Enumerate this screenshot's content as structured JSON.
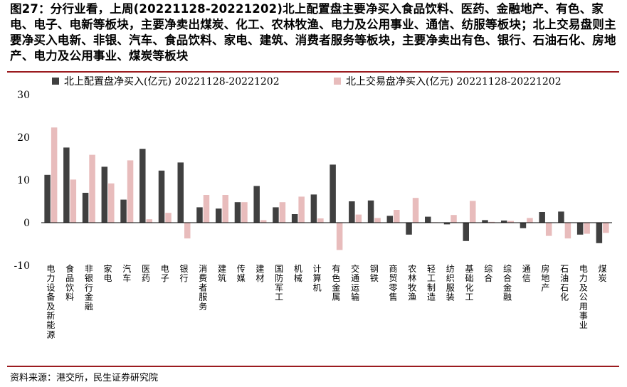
{
  "header": {
    "title": "图27：分行业看，上周(20221128-20221202)北上配置盘主要净买入食品饮料、医药、金融地产、有色、家电、电子、电新等板块，主要净卖出煤炭、化工、农林牧渔、电力及公用事业、通信、纺服等板块；北上交易盘则主要净买入电新、非银、汽车、食品饮料、家电、建筑、消费者服务等板块，主要净卖出有色、银行、石油石化、房地产、电力及公用事业、煤炭等板块"
  },
  "footer": {
    "source": "资料来源：港交所，民生证券研究院"
  },
  "colors": {
    "series1": "#404040",
    "series2": "#e8bcbc",
    "rule": "#9b1b1f"
  },
  "chart_data": {
    "type": "bar",
    "ylim": [
      -10,
      30
    ],
    "yticks": [
      "-10",
      "0",
      "10",
      "20",
      "30"
    ],
    "legend_position": "top",
    "grid": false,
    "categories": [
      "电力设备及新能源",
      "食品饮料",
      "非银行金融",
      "家电",
      "汽车",
      "医药",
      "电子",
      "银行",
      "消费者服务",
      "建筑",
      "传媒",
      "建材",
      "国防军工",
      "机械",
      "计算机",
      "有色金属",
      "交通运输",
      "钢铁",
      "商贸零售",
      "农林牧渔",
      "轻工制造",
      "纺织服装",
      "基础化工",
      "综合",
      "综合金融",
      "通信",
      "房地产",
      "石油石化",
      "电力及公用事业",
      "煤炭"
    ],
    "series": [
      {
        "name": "北上配置盘净买入(亿元) 20221128-20221202",
        "values": [
          11.2,
          17.6,
          7.0,
          13.1,
          5.4,
          17.3,
          12.2,
          14.1,
          3.6,
          3.3,
          4.8,
          8.6,
          3.6,
          2.0,
          6.6,
          13.6,
          5.0,
          5.2,
          1.6,
          -2.8,
          1.4,
          -0.4,
          -4.3,
          0.6,
          0.5,
          -1.3,
          2.5,
          2.6,
          -2.8,
          -4.8
        ]
      },
      {
        "name": "北上交易盘净买入(亿元) 20221128-20221202",
        "values": [
          22.3,
          10.1,
          15.9,
          9.2,
          14.6,
          0.8,
          2.3,
          -3.7,
          6.5,
          6.5,
          4.8,
          0.6,
          4.8,
          6.1,
          1.0,
          -6.4,
          1.9,
          1.1,
          3.0,
          5.8,
          0.1,
          1.8,
          5.1,
          0.2,
          0.4,
          1.1,
          -3.1,
          -3.7,
          -2.6,
          -2.4
        ]
      }
    ]
  }
}
